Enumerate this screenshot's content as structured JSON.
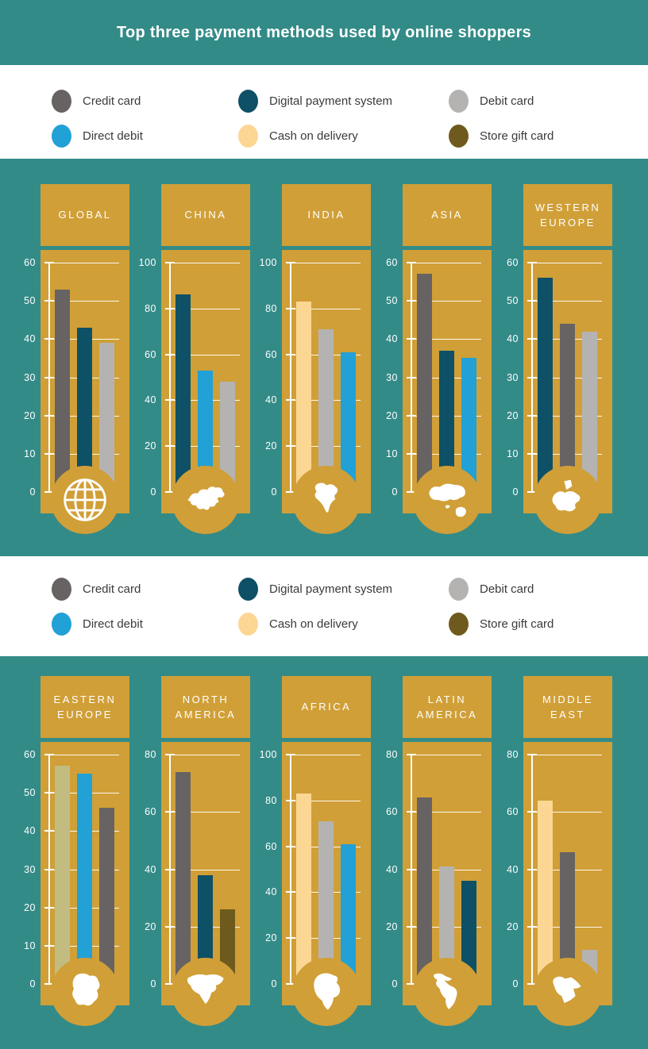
{
  "title": "Top three payment methods used by online shoppers",
  "legend": {
    "items": [
      {
        "label": "Credit card",
        "method": "credit_card"
      },
      {
        "label": "Digital payment system",
        "method": "digital_payment_system"
      },
      {
        "label": "Debit card",
        "method": "debit_card"
      },
      {
        "label": "Direct debit",
        "method": "direct_debit"
      },
      {
        "label": "Cash on delivery",
        "method": "cash_on_delivery"
      },
      {
        "label": "Store gift card",
        "method": "store_gift_card"
      }
    ]
  },
  "colors": {
    "credit_card": "#676362",
    "digital_payment_system": "#0e5066",
    "debit_card": "#b5b3b2",
    "direct_debit": "#21a1d5",
    "cash_on_delivery": "#fcd794",
    "store_gift_card": "#6f5a1e",
    "unlabeled_khaki": "#c2bc81",
    "panel_gold": "#d09f37",
    "background_teal": "#338b88",
    "grid_white": "#ffffff",
    "legend_text": "#3a3a3a"
  },
  "chart_data": [
    {
      "type": "bar",
      "region": "GLOBAL",
      "icon": "globe",
      "axis_max": 60,
      "axis_step": 10,
      "axis_ticks": [
        0,
        10,
        20,
        30,
        40,
        50,
        60
      ],
      "bars": [
        {
          "method": "credit_card",
          "value": 53
        },
        {
          "method": "digital_payment_system",
          "value": 43
        },
        {
          "method": "debit_card",
          "value": 39
        }
      ]
    },
    {
      "type": "bar",
      "region": "CHINA",
      "icon": "china",
      "axis_max": 100,
      "axis_step": 20,
      "axis_ticks": [
        0,
        20,
        40,
        60,
        80,
        100
      ],
      "bars": [
        {
          "method": "digital_payment_system",
          "value": 86
        },
        {
          "method": "direct_debit",
          "value": 53
        },
        {
          "method": "debit_card",
          "value": 48
        }
      ]
    },
    {
      "type": "bar",
      "region": "INDIA",
      "icon": "india",
      "axis_max": 100,
      "axis_step": 20,
      "axis_ticks": [
        0,
        20,
        40,
        60,
        80,
        100
      ],
      "bars": [
        {
          "method": "cash_on_delivery",
          "value": 83
        },
        {
          "method": "debit_card",
          "value": 71
        },
        {
          "method": "direct_debit",
          "value": 61
        }
      ]
    },
    {
      "type": "bar",
      "region": "ASIA",
      "icon": "asia",
      "axis_max": 60,
      "axis_step": 10,
      "axis_ticks": [
        0,
        10,
        20,
        30,
        40,
        50,
        60
      ],
      "bars": [
        {
          "method": "credit_card",
          "value": 57
        },
        {
          "method": "digital_payment_system",
          "value": 37
        },
        {
          "method": "direct_debit",
          "value": 35
        }
      ]
    },
    {
      "type": "bar",
      "region": "WESTERN EUROPE",
      "icon": "western_europe",
      "axis_max": 60,
      "axis_step": 10,
      "axis_ticks": [
        0,
        10,
        20,
        30,
        40,
        50,
        60
      ],
      "bars": [
        {
          "method": "digital_payment_system",
          "value": 56
        },
        {
          "method": "credit_card",
          "value": 44
        },
        {
          "method": "debit_card",
          "value": 42
        }
      ]
    },
    {
      "type": "bar",
      "region": "EASTERN EUROPE",
      "icon": "eastern_europe",
      "axis_max": 60,
      "axis_step": 10,
      "axis_ticks": [
        0,
        10,
        20,
        30,
        40,
        50,
        60
      ],
      "bars": [
        {
          "method": "unlabeled_khaki",
          "value": 57
        },
        {
          "method": "direct_debit",
          "value": 55
        },
        {
          "method": "credit_card",
          "value": 46
        }
      ]
    },
    {
      "type": "bar",
      "region": "NORTH AMERICA",
      "icon": "north_america",
      "axis_max": 80,
      "axis_step": 20,
      "axis_ticks": [
        0,
        20,
        40,
        60,
        80
      ],
      "bars": [
        {
          "method": "credit_card",
          "value": 74
        },
        {
          "method": "digital_payment_system",
          "value": 38
        },
        {
          "method": "store_gift_card",
          "value": 26
        }
      ]
    },
    {
      "type": "bar",
      "region": "AFRICA",
      "icon": "africa",
      "axis_max": 100,
      "axis_step": 20,
      "axis_ticks": [
        0,
        20,
        40,
        60,
        80,
        100
      ],
      "bars": [
        {
          "method": "cash_on_delivery",
          "value": 83
        },
        {
          "method": "debit_card",
          "value": 71
        },
        {
          "method": "direct_debit",
          "value": 61
        }
      ]
    },
    {
      "type": "bar",
      "region": "LATIN AMERICA",
      "icon": "latin_america",
      "axis_max": 80,
      "axis_step": 20,
      "axis_ticks": [
        0,
        20,
        40,
        60,
        80
      ],
      "bars": [
        {
          "method": "credit_card",
          "value": 65
        },
        {
          "method": "debit_card",
          "value": 41
        },
        {
          "method": "digital_payment_system",
          "value": 36
        }
      ]
    },
    {
      "type": "bar",
      "region": "MIDDLE EAST",
      "icon": "middle_east",
      "axis_max": 80,
      "axis_step": 20,
      "axis_ticks": [
        0,
        20,
        40,
        60,
        80
      ],
      "bars": [
        {
          "method": "cash_on_delivery",
          "value": 64
        },
        {
          "method": "credit_card",
          "value": 46
        },
        {
          "method": "debit_card",
          "value": 12
        }
      ]
    }
  ]
}
